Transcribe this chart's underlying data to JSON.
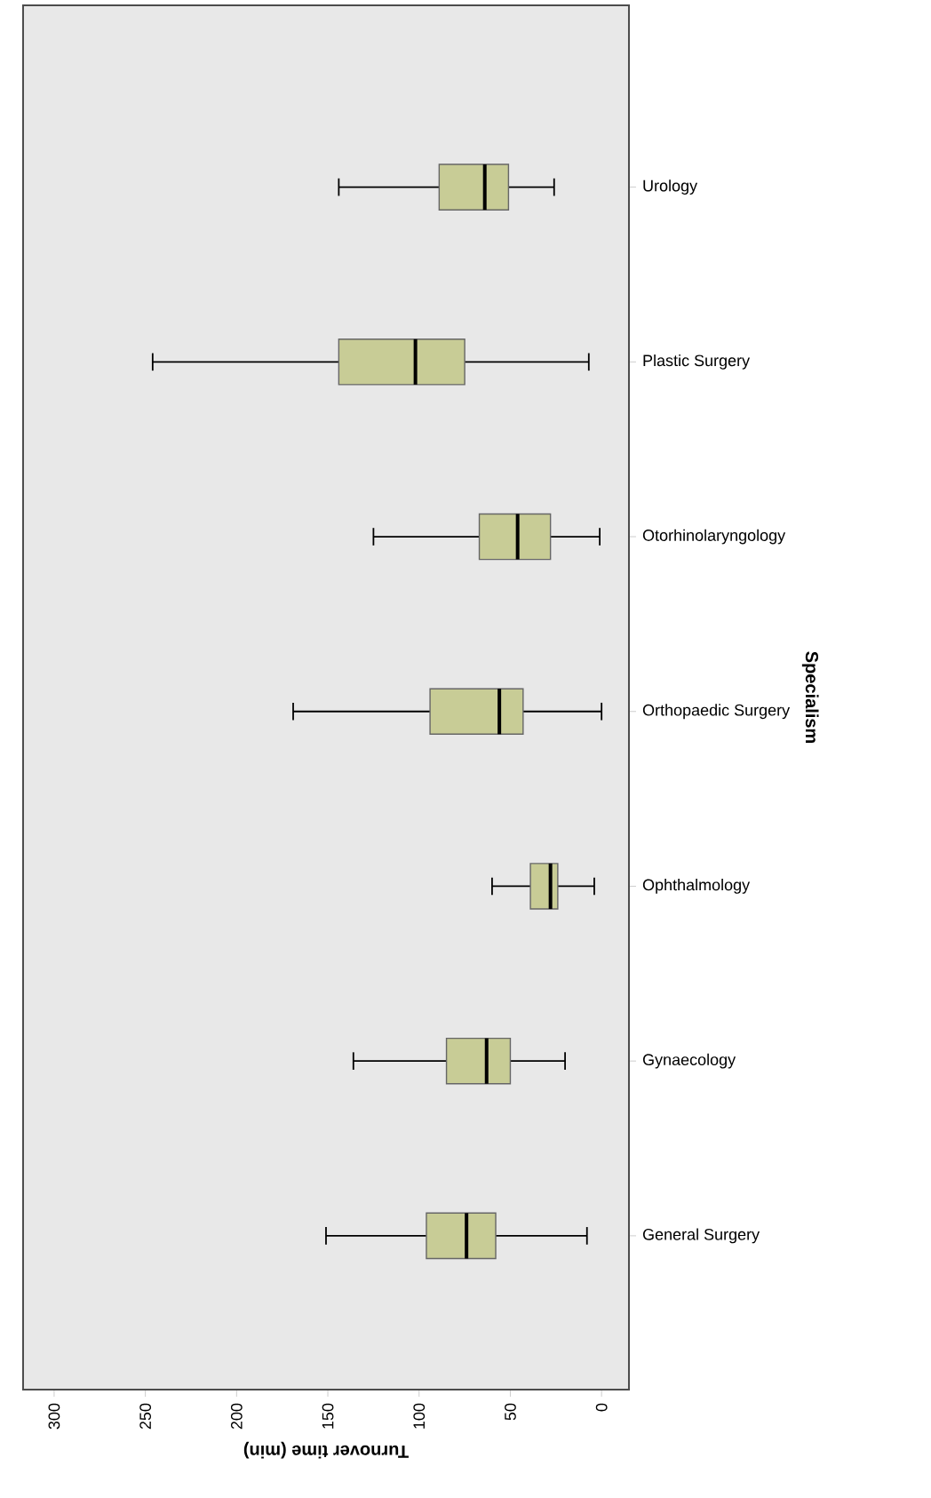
{
  "chart_data": {
    "type": "box",
    "orientation": "horizontal",
    "xlabel": "Turnover time (min)",
    "ylabel": "Specialism",
    "color": "#c8cc96",
    "categories": [
      "Urology",
      "Plastic Surgery",
      "Otorhinolaryngology",
      "Orthopaedic Surgery",
      "Ophthalmology",
      "Gynaecology",
      "General Surgery"
    ],
    "boxes": [
      {
        "low": 26,
        "q1": 51,
        "median": 64,
        "q3": 89,
        "high": 144
      },
      {
        "low": 7,
        "q1": 75,
        "median": 102,
        "q3": 144,
        "high": 246
      },
      {
        "low": 1,
        "q1": 28,
        "median": 46,
        "q3": 67,
        "high": 125
      },
      {
        "low": 0,
        "q1": 43,
        "median": 56,
        "q3": 94,
        "high": 169
      },
      {
        "low": 4,
        "q1": 24,
        "median": 28,
        "q3": 39,
        "high": 60
      },
      {
        "low": 20,
        "q1": 50,
        "median": 63,
        "q3": 85,
        "high": 136
      },
      {
        "low": 8,
        "q1": 58,
        "median": 74,
        "q3": 96,
        "high": 151
      }
    ],
    "xlim": [
      317,
      -15
    ],
    "xticks": [
      0,
      50,
      100,
      150,
      200,
      250,
      300
    ],
    "grid": false
  }
}
